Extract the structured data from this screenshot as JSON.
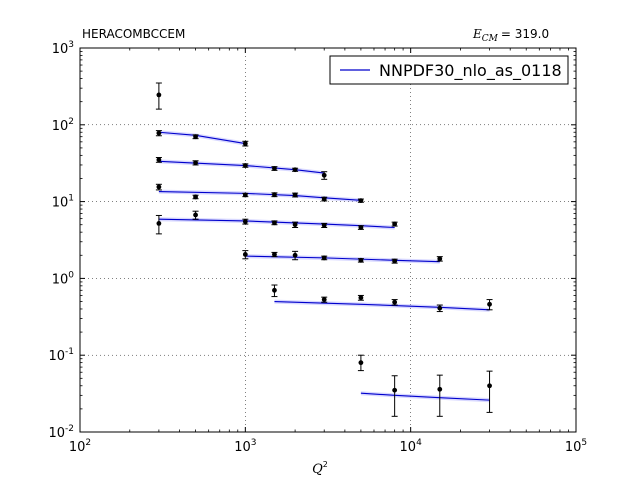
{
  "chart_data": {
    "type": "scatter",
    "title_left": "HERACOMBCCEM",
    "title_right_symbol": "E",
    "title_right_subscript": "CM",
    "title_right_value": "= 319.0",
    "xlabel_symbol": "Q",
    "xlabel_exponent": "2",
    "xscale": "log",
    "yscale": "log",
    "xlim": [
      100,
      100000
    ],
    "ylim": [
      0.01,
      1000
    ],
    "x_ticks": [
      {
        "value": 100,
        "base": "10",
        "exp": "2"
      },
      {
        "value": 1000,
        "base": "10",
        "exp": "3"
      },
      {
        "value": 10000,
        "base": "10",
        "exp": "4"
      },
      {
        "value": 100000,
        "base": "10",
        "exp": "5"
      }
    ],
    "y_ticks": [
      {
        "value": 0.01,
        "base": "10",
        "exp": "-2"
      },
      {
        "value": 0.1,
        "base": "10",
        "exp": "-1"
      },
      {
        "value": 1,
        "base": "10",
        "exp": "0"
      },
      {
        "value": 10,
        "base": "10",
        "exp": "1"
      },
      {
        "value": 100,
        "base": "10",
        "exp": "2"
      },
      {
        "value": 1000,
        "base": "10",
        "exp": "3"
      }
    ],
    "grid": true,
    "legend_position": "top-right",
    "legend": [
      {
        "label": "NNPDF30_nlo_as_0118",
        "color": "#0000cc"
      }
    ],
    "data_color": "#000000",
    "theory_color": "#0000cc",
    "band_color": "#a9a9ff",
    "series": [
      {
        "points": [
          {
            "x": 300,
            "y": 245,
            "lo": 160,
            "hi": 350
          }
        ],
        "theory": []
      },
      {
        "points": [
          {
            "x": 300,
            "y": 78,
            "lo": 72,
            "hi": 84
          },
          {
            "x": 500,
            "y": 70,
            "lo": 66,
            "hi": 74
          },
          {
            "x": 1000,
            "y": 57,
            "lo": 53,
            "hi": 61
          }
        ],
        "theory": [
          {
            "x": 300,
            "y": 80
          },
          {
            "x": 500,
            "y": 73
          },
          {
            "x": 1000,
            "y": 57
          }
        ]
      },
      {
        "points": [
          {
            "x": 300,
            "y": 35,
            "lo": 32.5,
            "hi": 37.5
          },
          {
            "x": 500,
            "y": 32,
            "lo": 30,
            "hi": 34
          },
          {
            "x": 1000,
            "y": 29.5,
            "lo": 28,
            "hi": 31
          },
          {
            "x": 1500,
            "y": 27,
            "lo": 25.5,
            "hi": 28.5
          },
          {
            "x": 2000,
            "y": 26,
            "lo": 24.8,
            "hi": 27.2
          },
          {
            "x": 3000,
            "y": 22,
            "lo": 19.5,
            "hi": 24.5
          }
        ],
        "theory": [
          {
            "x": 300,
            "y": 33.5
          },
          {
            "x": 1000,
            "y": 29.5
          },
          {
            "x": 2000,
            "y": 26
          },
          {
            "x": 3000,
            "y": 23.5
          }
        ]
      },
      {
        "points": [
          {
            "x": 300,
            "y": 15.5,
            "lo": 14.2,
            "hi": 16.8
          },
          {
            "x": 500,
            "y": 11.5,
            "lo": 10.9,
            "hi": 12.1
          },
          {
            "x": 1000,
            "y": 12.2,
            "lo": 11.6,
            "hi": 12.8
          },
          {
            "x": 1500,
            "y": 12.3,
            "lo": 11.6,
            "hi": 13
          },
          {
            "x": 2000,
            "y": 12.2,
            "lo": 11.5,
            "hi": 12.9
          },
          {
            "x": 3000,
            "y": 10.8,
            "lo": 10.2,
            "hi": 11.4
          },
          {
            "x": 5000,
            "y": 10.3,
            "lo": 9.8,
            "hi": 10.8
          }
        ],
        "theory": [
          {
            "x": 300,
            "y": 13.5
          },
          {
            "x": 1000,
            "y": 12.8
          },
          {
            "x": 2000,
            "y": 12
          },
          {
            "x": 3000,
            "y": 11.2
          },
          {
            "x": 5000,
            "y": 10.4
          }
        ]
      },
      {
        "points": [
          {
            "x": 300,
            "y": 5.2,
            "lo": 3.8,
            "hi": 6.6
          },
          {
            "x": 500,
            "y": 6.7,
            "lo": 5.9,
            "hi": 7.5
          },
          {
            "x": 1000,
            "y": 5.5,
            "lo": 5.1,
            "hi": 5.9
          },
          {
            "x": 1500,
            "y": 5.3,
            "lo": 5,
            "hi": 5.6
          },
          {
            "x": 2000,
            "y": 5.0,
            "lo": 4.6,
            "hi": 5.4
          },
          {
            "x": 3000,
            "y": 4.9,
            "lo": 4.6,
            "hi": 5.2
          },
          {
            "x": 5000,
            "y": 4.6,
            "lo": 4.35,
            "hi": 4.85
          },
          {
            "x": 8000,
            "y": 5.1,
            "lo": 4.8,
            "hi": 5.4
          }
        ],
        "theory": [
          {
            "x": 300,
            "y": 5.9
          },
          {
            "x": 1000,
            "y": 5.6
          },
          {
            "x": 3000,
            "y": 5.1
          },
          {
            "x": 5000,
            "y": 4.85
          },
          {
            "x": 8000,
            "y": 4.6
          }
        ]
      },
      {
        "points": [
          {
            "x": 1000,
            "y": 2.05,
            "lo": 1.8,
            "hi": 2.3
          },
          {
            "x": 1500,
            "y": 2.05,
            "lo": 1.92,
            "hi": 2.18
          },
          {
            "x": 2000,
            "y": 2.0,
            "lo": 1.75,
            "hi": 2.25
          },
          {
            "x": 3000,
            "y": 1.85,
            "lo": 1.75,
            "hi": 1.95
          },
          {
            "x": 5000,
            "y": 1.72,
            "lo": 1.63,
            "hi": 1.81
          },
          {
            "x": 8000,
            "y": 1.68,
            "lo": 1.58,
            "hi": 1.78
          },
          {
            "x": 15000,
            "y": 1.8,
            "lo": 1.68,
            "hi": 1.92
          }
        ],
        "theory": [
          {
            "x": 1000,
            "y": 1.95
          },
          {
            "x": 3000,
            "y": 1.85
          },
          {
            "x": 8000,
            "y": 1.72
          },
          {
            "x": 15000,
            "y": 1.65
          }
        ]
      },
      {
        "points": [
          {
            "x": 1500,
            "y": 0.7,
            "lo": 0.58,
            "hi": 0.82
          },
          {
            "x": 3000,
            "y": 0.53,
            "lo": 0.49,
            "hi": 0.57
          },
          {
            "x": 5000,
            "y": 0.56,
            "lo": 0.52,
            "hi": 0.6
          },
          {
            "x": 8000,
            "y": 0.49,
            "lo": 0.45,
            "hi": 0.53
          },
          {
            "x": 15000,
            "y": 0.41,
            "lo": 0.37,
            "hi": 0.45
          },
          {
            "x": 30000,
            "y": 0.46,
            "lo": 0.39,
            "hi": 0.53
          }
        ],
        "theory": [
          {
            "x": 1500,
            "y": 0.5
          },
          {
            "x": 5000,
            "y": 0.46
          },
          {
            "x": 15000,
            "y": 0.42
          },
          {
            "x": 30000,
            "y": 0.39
          }
        ]
      },
      {
        "points": [
          {
            "x": 5000,
            "y": 0.08,
            "lo": 0.063,
            "hi": 0.1
          },
          {
            "x": 8000,
            "y": 0.035,
            "lo": 0.016,
            "hi": 0.054
          },
          {
            "x": 15000,
            "y": 0.036,
            "lo": 0.016,
            "hi": 0.055
          },
          {
            "x": 30000,
            "y": 0.04,
            "lo": 0.018,
            "hi": 0.062
          }
        ],
        "theory": [
          {
            "x": 5000,
            "y": 0.032
          },
          {
            "x": 8000,
            "y": 0.03
          },
          {
            "x": 15000,
            "y": 0.028
          },
          {
            "x": 30000,
            "y": 0.026
          }
        ]
      }
    ]
  }
}
